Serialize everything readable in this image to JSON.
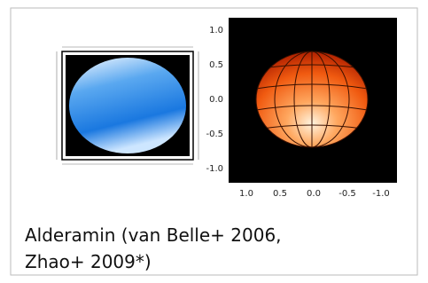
{
  "figure": {
    "plot": {
      "yticks": [
        "1.0",
        "0.5",
        "0.0",
        "-0.5",
        "-1.0"
      ],
      "xticks": [
        "1.0",
        "0.5",
        "0.0",
        "-0.5",
        "-1.0"
      ]
    },
    "caption": [
      "Alderamin (van Belle+ 2006,",
      "Zhao+ 2009*)"
    ]
  }
}
